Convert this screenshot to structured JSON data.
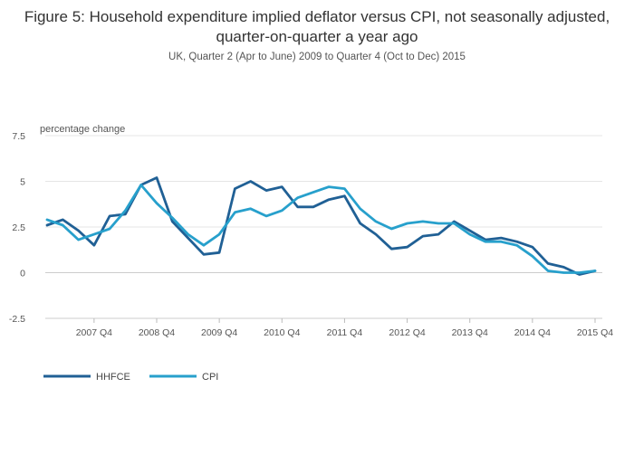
{
  "chart_data": {
    "type": "line",
    "title": "Figure 5: Household expenditure implied deflator versus CPI, not seasonally adjusted, quarter-on-quarter a year ago",
    "subtitle": "UK, Quarter 2 (Apr to June) 2009 to Quarter 4 (Oct to Dec) 2015",
    "ylabel": "percentage change",
    "ylim": [
      -2.5,
      7.5
    ],
    "yticks": [
      7.5,
      5,
      2.5,
      0,
      -2.5
    ],
    "ytick_labels": [
      "7.5",
      "5",
      "2.5",
      "0",
      "-2.5"
    ],
    "xtick_labels": [
      "2007 Q4",
      "2008 Q4",
      "2009 Q4",
      "2010 Q4",
      "2011 Q4",
      "2012 Q4",
      "2013 Q4",
      "2014 Q4",
      "2015 Q4"
    ],
    "xtick_index": [
      3,
      7,
      11,
      15,
      19,
      23,
      27,
      31,
      35
    ],
    "x": [
      "2007 Q1",
      "2007 Q2",
      "2007 Q3",
      "2007 Q4",
      "2008 Q1",
      "2008 Q2",
      "2008 Q3",
      "2008 Q4",
      "2009 Q1",
      "2009 Q2",
      "2009 Q3",
      "2009 Q4",
      "2010 Q1",
      "2010 Q2",
      "2010 Q3",
      "2010 Q4",
      "2011 Q1",
      "2011 Q2",
      "2011 Q3",
      "2011 Q4",
      "2012 Q1",
      "2012 Q2",
      "2012 Q3",
      "2012 Q4",
      "2013 Q1",
      "2013 Q2",
      "2013 Q3",
      "2013 Q4",
      "2014 Q1",
      "2014 Q2",
      "2014 Q3",
      "2014 Q4",
      "2015 Q1",
      "2015 Q2",
      "2015 Q3",
      "2015 Q4"
    ],
    "series": [
      {
        "name": "HHFCE",
        "color": "#206095",
        "values": [
          2.6,
          2.9,
          2.3,
          1.5,
          3.1,
          3.2,
          4.8,
          5.2,
          2.8,
          1.9,
          1.0,
          1.1,
          4.6,
          5.0,
          4.5,
          4.7,
          3.6,
          3.6,
          4.0,
          4.2,
          2.7,
          2.1,
          1.3,
          1.4,
          2.0,
          2.1,
          2.8,
          2.3,
          1.8,
          1.9,
          1.7,
          1.4,
          0.5,
          0.3,
          -0.1,
          0.1
        ]
      },
      {
        "name": "CPI",
        "color": "#27A0CC",
        "values": [
          2.9,
          2.6,
          1.8,
          2.1,
          2.4,
          3.4,
          4.8,
          3.8,
          3.0,
          2.1,
          1.5,
          2.1,
          3.3,
          3.5,
          3.1,
          3.4,
          4.1,
          4.4,
          4.7,
          4.6,
          3.5,
          2.8,
          2.4,
          2.7,
          2.8,
          2.7,
          2.7,
          2.1,
          1.7,
          1.7,
          1.5,
          0.9,
          0.1,
          0.0,
          0.0,
          0.1
        ]
      }
    ],
    "legend": {
      "position": "bottom-left"
    },
    "grid": true
  }
}
